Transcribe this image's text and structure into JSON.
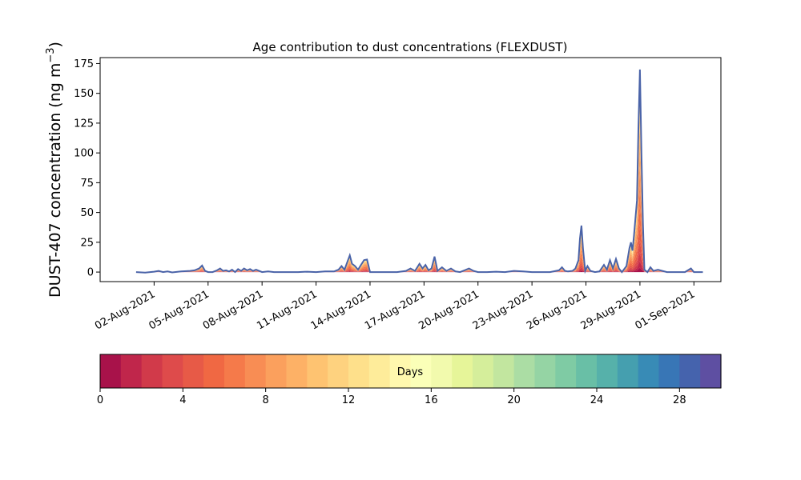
{
  "chart_data": {
    "type": "area",
    "title": "Age contribution to dust concentrations (FLEXDUST)",
    "ylabel": "DUST-407 concentration (ng m",
    "ylabel_sup": "−3",
    "ylabel_close": ")",
    "xlabel": "",
    "ylim": [
      -8,
      180
    ],
    "xlim_days_label": "days after 31-Jul-2021 shown as dates",
    "x_ticks": [
      {
        "date": "2021-08-02",
        "label": "02-Aug-2021"
      },
      {
        "date": "2021-08-05",
        "label": "05-Aug-2021"
      },
      {
        "date": "2021-08-08",
        "label": "08-Aug-2021"
      },
      {
        "date": "2021-08-11",
        "label": "11-Aug-2021"
      },
      {
        "date": "2021-08-14",
        "label": "14-Aug-2021"
      },
      {
        "date": "2021-08-17",
        "label": "17-Aug-2021"
      },
      {
        "date": "2021-08-20",
        "label": "20-Aug-2021"
      },
      {
        "date": "2021-08-23",
        "label": "23-Aug-2021"
      },
      {
        "date": "2021-08-26",
        "label": "26-Aug-2021"
      },
      {
        "date": "2021-08-29",
        "label": "29-Aug-2021"
      },
      {
        "date": "2021-09-01",
        "label": "01-Sep-2021"
      }
    ],
    "y_ticks": [
      0,
      25,
      50,
      75,
      100,
      125,
      150,
      175
    ],
    "series_total": {
      "color": "#4a63a8",
      "points": [
        [
          "2021-08-01T00",
          0
        ],
        [
          "2021-08-01T12",
          -0.5
        ],
        [
          "2021-08-02T00",
          0.3
        ],
        [
          "2021-08-02T06",
          1
        ],
        [
          "2021-08-02T12",
          0
        ],
        [
          "2021-08-02T18",
          0.5
        ],
        [
          "2021-08-03T00",
          -0.3
        ],
        [
          "2021-08-03T12",
          0.5
        ],
        [
          "2021-08-04T00",
          1
        ],
        [
          "2021-08-04T06",
          1.5
        ],
        [
          "2021-08-04T12",
          3
        ],
        [
          "2021-08-04T16",
          5.5
        ],
        [
          "2021-08-04T20",
          1
        ],
        [
          "2021-08-05T00",
          0
        ],
        [
          "2021-08-05T06",
          0
        ],
        [
          "2021-08-05T12",
          1.5
        ],
        [
          "2021-08-05T16",
          3
        ],
        [
          "2021-08-05T20",
          1
        ],
        [
          "2021-08-06T00",
          1.5
        ],
        [
          "2021-08-06T04",
          0.5
        ],
        [
          "2021-08-06T08",
          2
        ],
        [
          "2021-08-06T12",
          0
        ],
        [
          "2021-08-06T16",
          2.5
        ],
        [
          "2021-08-06T20",
          1
        ],
        [
          "2021-08-07T00",
          3
        ],
        [
          "2021-08-07T04",
          1.5
        ],
        [
          "2021-08-07T08",
          2.5
        ],
        [
          "2021-08-07T12",
          1
        ],
        [
          "2021-08-07T16",
          2
        ],
        [
          "2021-08-07T20",
          1
        ],
        [
          "2021-08-08T00",
          0
        ],
        [
          "2021-08-08T08",
          0.5
        ],
        [
          "2021-08-08T16",
          0
        ],
        [
          "2021-08-09T00",
          0
        ],
        [
          "2021-08-09T12",
          0
        ],
        [
          "2021-08-10T00",
          0
        ],
        [
          "2021-08-10T12",
          0.3
        ],
        [
          "2021-08-11T00",
          0
        ],
        [
          "2021-08-11T12",
          0.5
        ],
        [
          "2021-08-12T00",
          0.5
        ],
        [
          "2021-08-12T06",
          2
        ],
        [
          "2021-08-12T10",
          5
        ],
        [
          "2021-08-12T14",
          2
        ],
        [
          "2021-08-12T18",
          9
        ],
        [
          "2021-08-12T21",
          14
        ],
        [
          "2021-08-13T00",
          7
        ],
        [
          "2021-08-13T04",
          5
        ],
        [
          "2021-08-13T08",
          2
        ],
        [
          "2021-08-13T12",
          6
        ],
        [
          "2021-08-13T16",
          10
        ],
        [
          "2021-08-13T20",
          10.5
        ],
        [
          "2021-08-14T00",
          0
        ],
        [
          "2021-08-14T12",
          0
        ],
        [
          "2021-08-15T00",
          0
        ],
        [
          "2021-08-15T12",
          0
        ],
        [
          "2021-08-16T00",
          1
        ],
        [
          "2021-08-16T06",
          3
        ],
        [
          "2021-08-16T12",
          1
        ],
        [
          "2021-08-16T18",
          7
        ],
        [
          "2021-08-16T22",
          3
        ],
        [
          "2021-08-17T02",
          6
        ],
        [
          "2021-08-17T06",
          1.5
        ],
        [
          "2021-08-17T10",
          3
        ],
        [
          "2021-08-17T14",
          13
        ],
        [
          "2021-08-17T18",
          1
        ],
        [
          "2021-08-18T00",
          4
        ],
        [
          "2021-08-18T06",
          1
        ],
        [
          "2021-08-18T12",
          3
        ],
        [
          "2021-08-18T18",
          0.5
        ],
        [
          "2021-08-19T00",
          0
        ],
        [
          "2021-08-19T06",
          1.5
        ],
        [
          "2021-08-19T12",
          3
        ],
        [
          "2021-08-19T18",
          1
        ],
        [
          "2021-08-20T00",
          0
        ],
        [
          "2021-08-20T12",
          0
        ],
        [
          "2021-08-21T00",
          0.3
        ],
        [
          "2021-08-21T12",
          0
        ],
        [
          "2021-08-22T00",
          1
        ],
        [
          "2021-08-22T12",
          0.5
        ],
        [
          "2021-08-23T00",
          0
        ],
        [
          "2021-08-23T12",
          0
        ],
        [
          "2021-08-24T00",
          0
        ],
        [
          "2021-08-24T12",
          1.5
        ],
        [
          "2021-08-24T16",
          4
        ],
        [
          "2021-08-24T20",
          1
        ],
        [
          "2021-08-25T00",
          0.5
        ],
        [
          "2021-08-25T06",
          1
        ],
        [
          "2021-08-25T10",
          3
        ],
        [
          "2021-08-25T14",
          10
        ],
        [
          "2021-08-25T16",
          28
        ],
        [
          "2021-08-25T18",
          39
        ],
        [
          "2021-08-25T20",
          20
        ],
        [
          "2021-08-25T23",
          1
        ],
        [
          "2021-08-26T02",
          5
        ],
        [
          "2021-08-26T06",
          1
        ],
        [
          "2021-08-26T12",
          0
        ],
        [
          "2021-08-26T18",
          0.5
        ],
        [
          "2021-08-27T00",
          6
        ],
        [
          "2021-08-27T04",
          2
        ],
        [
          "2021-08-27T08",
          10
        ],
        [
          "2021-08-27T12",
          3
        ],
        [
          "2021-08-27T16",
          11
        ],
        [
          "2021-08-27T20",
          3
        ],
        [
          "2021-08-28T00",
          0
        ],
        [
          "2021-08-28T06",
          5
        ],
        [
          "2021-08-28T10",
          20
        ],
        [
          "2021-08-28T12",
          25
        ],
        [
          "2021-08-28T14",
          18
        ],
        [
          "2021-08-28T16",
          30
        ],
        [
          "2021-08-28T18",
          45
        ],
        [
          "2021-08-28T20",
          60
        ],
        [
          "2021-08-28T22",
          120
        ],
        [
          "2021-08-29T00",
          170
        ],
        [
          "2021-08-29T02",
          100
        ],
        [
          "2021-08-29T04",
          40
        ],
        [
          "2021-08-29T06",
          2
        ],
        [
          "2021-08-29T10",
          0
        ],
        [
          "2021-08-29T14",
          4
        ],
        [
          "2021-08-29T18",
          1
        ],
        [
          "2021-08-30T00",
          2
        ],
        [
          "2021-08-30T12",
          0
        ],
        [
          "2021-08-31T00",
          0
        ],
        [
          "2021-08-31T12",
          0
        ],
        [
          "2021-08-31T20",
          3
        ],
        [
          "2021-09-01T00",
          0
        ],
        [
          "2021-09-01T12",
          0
        ]
      ]
    },
    "colorbar": {
      "label": "Days",
      "min": 0,
      "max": 30,
      "ticks": [
        0,
        4,
        8,
        12,
        16,
        20,
        24,
        28
      ],
      "colors": [
        "#a8124a",
        "#c0264b",
        "#d13a4a",
        "#de4b4b",
        "#e75a47",
        "#f06843",
        "#f57a4a",
        "#f88d54",
        "#fba05d",
        "#fdb166",
        "#fec371",
        "#fed27f",
        "#fee08b",
        "#feec9a",
        "#fff8ae",
        "#fbffb8",
        "#f2faad",
        "#e6f599",
        "#d5ee9b",
        "#c2e69f",
        "#abdda4",
        "#95d4a4",
        "#7fcba4",
        "#69bfa6",
        "#56b1aa",
        "#459faf",
        "#388bb6",
        "#3876b6",
        "#4563ad",
        "#5e4fa2"
      ]
    }
  }
}
